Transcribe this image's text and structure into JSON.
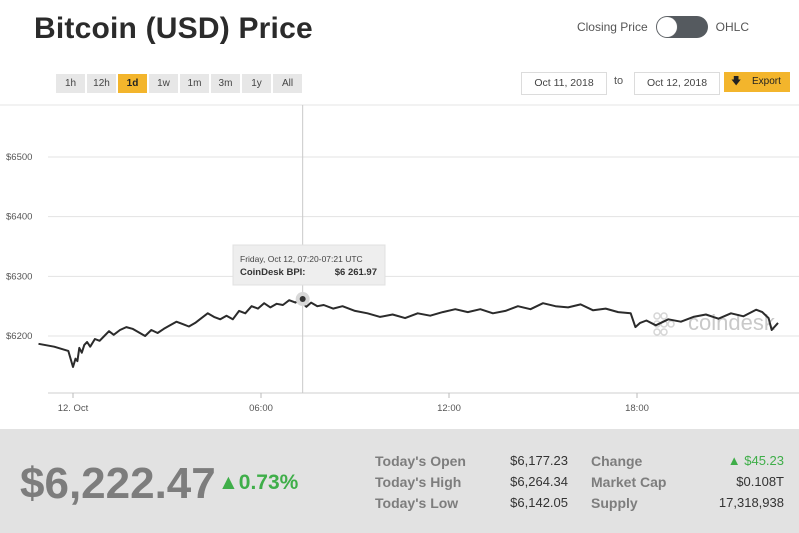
{
  "header": {
    "title": "Bitcoin (USD) Price",
    "toggle_left": "Closing Price",
    "toggle_right": "OHLC"
  },
  "ranges": [
    "1h",
    "12h",
    "1d",
    "1w",
    "1m",
    "3m",
    "1y",
    "All"
  ],
  "active_range": "1d",
  "dates": {
    "from": "Oct 11, 2018",
    "to_label": "to",
    "to": "Oct 12, 2018"
  },
  "export_label": "Export",
  "tooltip": {
    "time": "Friday, Oct 12, 07:20-07:21 UTC",
    "label": "CoinDesk BPI:",
    "value": "$6 261.97"
  },
  "watermark": "coindesk",
  "chart_data": {
    "type": "line",
    "y_ticks": [
      6500,
      6400,
      6300,
      6200
    ],
    "y_tick_labels": [
      "$6500",
      "$6400",
      "$6300",
      "$6200"
    ],
    "x_tick_labels": [
      "12. Oct",
      "06:00",
      "12:00",
      "18:00"
    ],
    "x_ticks_hours": [
      0,
      6,
      12,
      18
    ],
    "xlim_hours": [
      -1.15,
      22.6
    ],
    "ylim": [
      6100,
      6580
    ],
    "series": [
      {
        "x_hours": [
          -1.1,
          -0.6,
          -0.15,
          0.0,
          0.08,
          0.14,
          0.2,
          0.28,
          0.36,
          0.45,
          0.55,
          0.7,
          0.85,
          1.0,
          1.15,
          1.3,
          1.5,
          1.7,
          1.9,
          2.1,
          2.3,
          2.5,
          2.7,
          2.9,
          3.1,
          3.3,
          3.5,
          3.7,
          3.9,
          4.1,
          4.3,
          4.5,
          4.7,
          4.9,
          5.1,
          5.3,
          5.5,
          5.7,
          5.9,
          6.1,
          6.3,
          6.5,
          6.7,
          6.9,
          7.1,
          7.25,
          7.33,
          7.45,
          7.6,
          7.8,
          8.0,
          8.3,
          8.6,
          9.0,
          9.4,
          9.8,
          10.2,
          10.6,
          11.0,
          11.4,
          11.8,
          12.2,
          12.6,
          13.0,
          13.4,
          13.8,
          14.2,
          14.6,
          15.0,
          15.4,
          15.8,
          16.2,
          16.6,
          17.0,
          17.4,
          17.8,
          17.95,
          18.1,
          18.3,
          18.6,
          19.0,
          19.4,
          19.8,
          20.2,
          20.6,
          21.0,
          21.4,
          21.8,
          22.0,
          22.2,
          22.3,
          22.5
        ],
        "values": [
          6187,
          6182,
          6175,
          6148,
          6162,
          6158,
          6180,
          6172,
          6185,
          6190,
          6182,
          6195,
          6192,
          6200,
          6208,
          6202,
          6210,
          6215,
          6212,
          6206,
          6200,
          6210,
          6205,
          6212,
          6218,
          6224,
          6220,
          6216,
          6222,
          6230,
          6238,
          6232,
          6228,
          6234,
          6228,
          6242,
          6238,
          6250,
          6246,
          6255,
          6248,
          6254,
          6252,
          6260,
          6256,
          6262,
          6255,
          6249,
          6256,
          6250,
          6252,
          6246,
          6250,
          6242,
          6238,
          6232,
          6236,
          6230,
          6238,
          6234,
          6240,
          6245,
          6240,
          6245,
          6238,
          6242,
          6250,
          6245,
          6255,
          6250,
          6248,
          6253,
          6243,
          6246,
          6240,
          6238,
          6215,
          6222,
          6226,
          6218,
          6228,
          6224,
          6232,
          6236,
          6229,
          6238,
          6233,
          6244,
          6240,
          6230,
          6210,
          6222
        ]
      }
    ],
    "marker": {
      "x_hours": 7.33,
      "value": 6261.97
    }
  },
  "stats": {
    "price": "$6,222.47",
    "change_pct": "▲0.73%",
    "open_label": "Today's Open",
    "open": "$6,177.23",
    "high_label": "Today's High",
    "high": "$6,264.34",
    "low_label": "Today's Low",
    "low": "$6,142.05",
    "change_label": "Change",
    "change": "▲ $45.23",
    "mcap_label": "Market Cap",
    "mcap": "$0.108T",
    "supply_label": "Supply",
    "supply": "17,318,938"
  },
  "colors": {
    "accent": "#f3b52c",
    "green": "#3fae49",
    "line": "#2b2b2b"
  }
}
